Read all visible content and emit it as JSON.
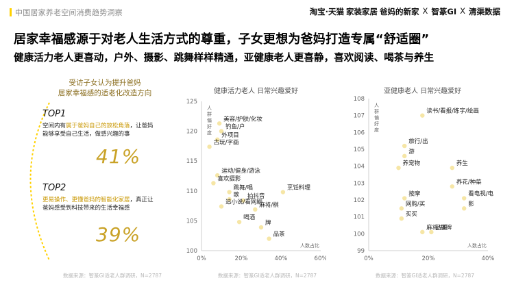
{
  "header": {
    "title": "中国居家养老空间消费趋势洞察",
    "logos": [
      "淘宝·天猫",
      "家装家居",
      "爸妈的新家",
      "智篆GI",
      "清渠数据"
    ],
    "separator": "X"
  },
  "headline": "居家幸福感源于对老人生活方式的尊重，子女更想为爸妈打造专属“舒适圈”",
  "subhead": "健康活力老人更喜动，户外、摄影、跳舞样样精通，亚健康老人更喜静，喜欢阅读、喝茶与养生",
  "left_panel": {
    "caption_line1": "受访子女认为提升爸妈",
    "caption_line2": "居家幸福感的适老化改造方向",
    "top1": {
      "label": "TOP1",
      "desc_pre": "空间内有",
      "desc_highlight": "属于爸妈自己的放松角落",
      "desc_post": "，让爸妈能够享受自己生活，做感兴趣的事",
      "percent": "41%"
    },
    "top2": {
      "label": "TOP2",
      "desc_highlight": "更易操作、更懂爸妈的智能化家居",
      "desc_post": "，真正让爸妈感受到科技带来的生活幸福感",
      "percent": "39%"
    },
    "source": "数据来源：智篆GI适老人群调研，N=2787"
  },
  "colors": {
    "accent": "#ffd100",
    "gold": "#c9a227",
    "dot": "#f6e6a6",
    "axis": "#cfcfcf"
  },
  "chart_data": [
    {
      "type": "scatter",
      "title": "健康活力老人 日常兴趣爱好",
      "ylabel": "人群偏好度",
      "xlabel": "人数占比",
      "xlim": [
        0,
        60
      ],
      "ylim": [
        100,
        125
      ],
      "xticks": [
        "0%",
        "20%",
        "40%",
        "60%"
      ],
      "yticks": [
        100,
        105,
        110,
        115,
        120,
        125
      ],
      "points": [
        {
          "label": "美容/护肤/化妆",
          "x": 9,
          "y": 121.3
        },
        {
          "label": "钓鱼/户",
          "x": 10,
          "y": 120.0
        },
        {
          "label": "外项目",
          "x": 8,
          "y": 118.6
        },
        {
          "label": "古玩/字画",
          "x": 4,
          "y": 117.4
        },
        {
          "label": "运动/健身/游泳",
          "x": 8,
          "y": 112.6
        },
        {
          "label": "喜欢摄影",
          "x": 6,
          "y": 111.3
        },
        {
          "label": "跳舞/唱",
          "x": 14,
          "y": 109.8
        },
        {
          "label": "歌",
          "x": 14,
          "y": 108.6
        },
        {
          "label": "拍抖音",
          "x": 21,
          "y": 108.4
        },
        {
          "label": "追小说/看网剧",
          "x": 10,
          "y": 107.4
        },
        {
          "label": "麻将/棋",
          "x": 27,
          "y": 106.9
        },
        {
          "label": "喝酒",
          "x": 19,
          "y": 104.8
        },
        {
          "label": "牌",
          "x": 30,
          "y": 103.9
        },
        {
          "label": "品茶",
          "x": 34,
          "y": 102.0
        },
        {
          "label": "烹饪料理",
          "x": 41,
          "y": 109.8
        }
      ],
      "source": "数据来源：智篆GI适老人群调研，N=2787"
    },
    {
      "type": "scatter",
      "title": "亚健康老人 日常兴趣爱好",
      "ylabel": "人群偏好度",
      "xlabel": "人数占比",
      "xlim": [
        0,
        40
      ],
      "ylim": [
        99,
        108
      ],
      "xticks": [
        "0%",
        "20%",
        "40%"
      ],
      "yticks": [
        99,
        100,
        101,
        102,
        103,
        104,
        105,
        106,
        107,
        108
      ],
      "points": [
        {
          "label": "读书/看报/练字/绘画",
          "x": 18,
          "y": 107.0
        },
        {
          "label": "旅行/出",
          "x": 12,
          "y": 105.2
        },
        {
          "label": "游",
          "x": 12,
          "y": 104.6
        },
        {
          "label": "养宠物",
          "x": 10,
          "y": 103.9
        },
        {
          "label": "养生",
          "x": 28,
          "y": 103.9
        },
        {
          "label": "养花/种菜",
          "x": 28,
          "y": 102.8
        },
        {
          "label": "按摩",
          "x": 12,
          "y": 102.1
        },
        {
          "label": "看电视/电",
          "x": 32,
          "y": 102.1
        },
        {
          "label": "影",
          "x": 32,
          "y": 101.5
        },
        {
          "label": "网购/买",
          "x": 11,
          "y": 101.5
        },
        {
          "label": "买买",
          "x": 11,
          "y": 100.9
        },
        {
          "label": "麻将/棋牌",
          "x": 18,
          "y": 100.1
        },
        {
          "label": "品茶",
          "x": 21,
          "y": 100.1
        }
      ],
      "source": "数据来源：智篆GI适老人群调研，N=2787"
    }
  ]
}
